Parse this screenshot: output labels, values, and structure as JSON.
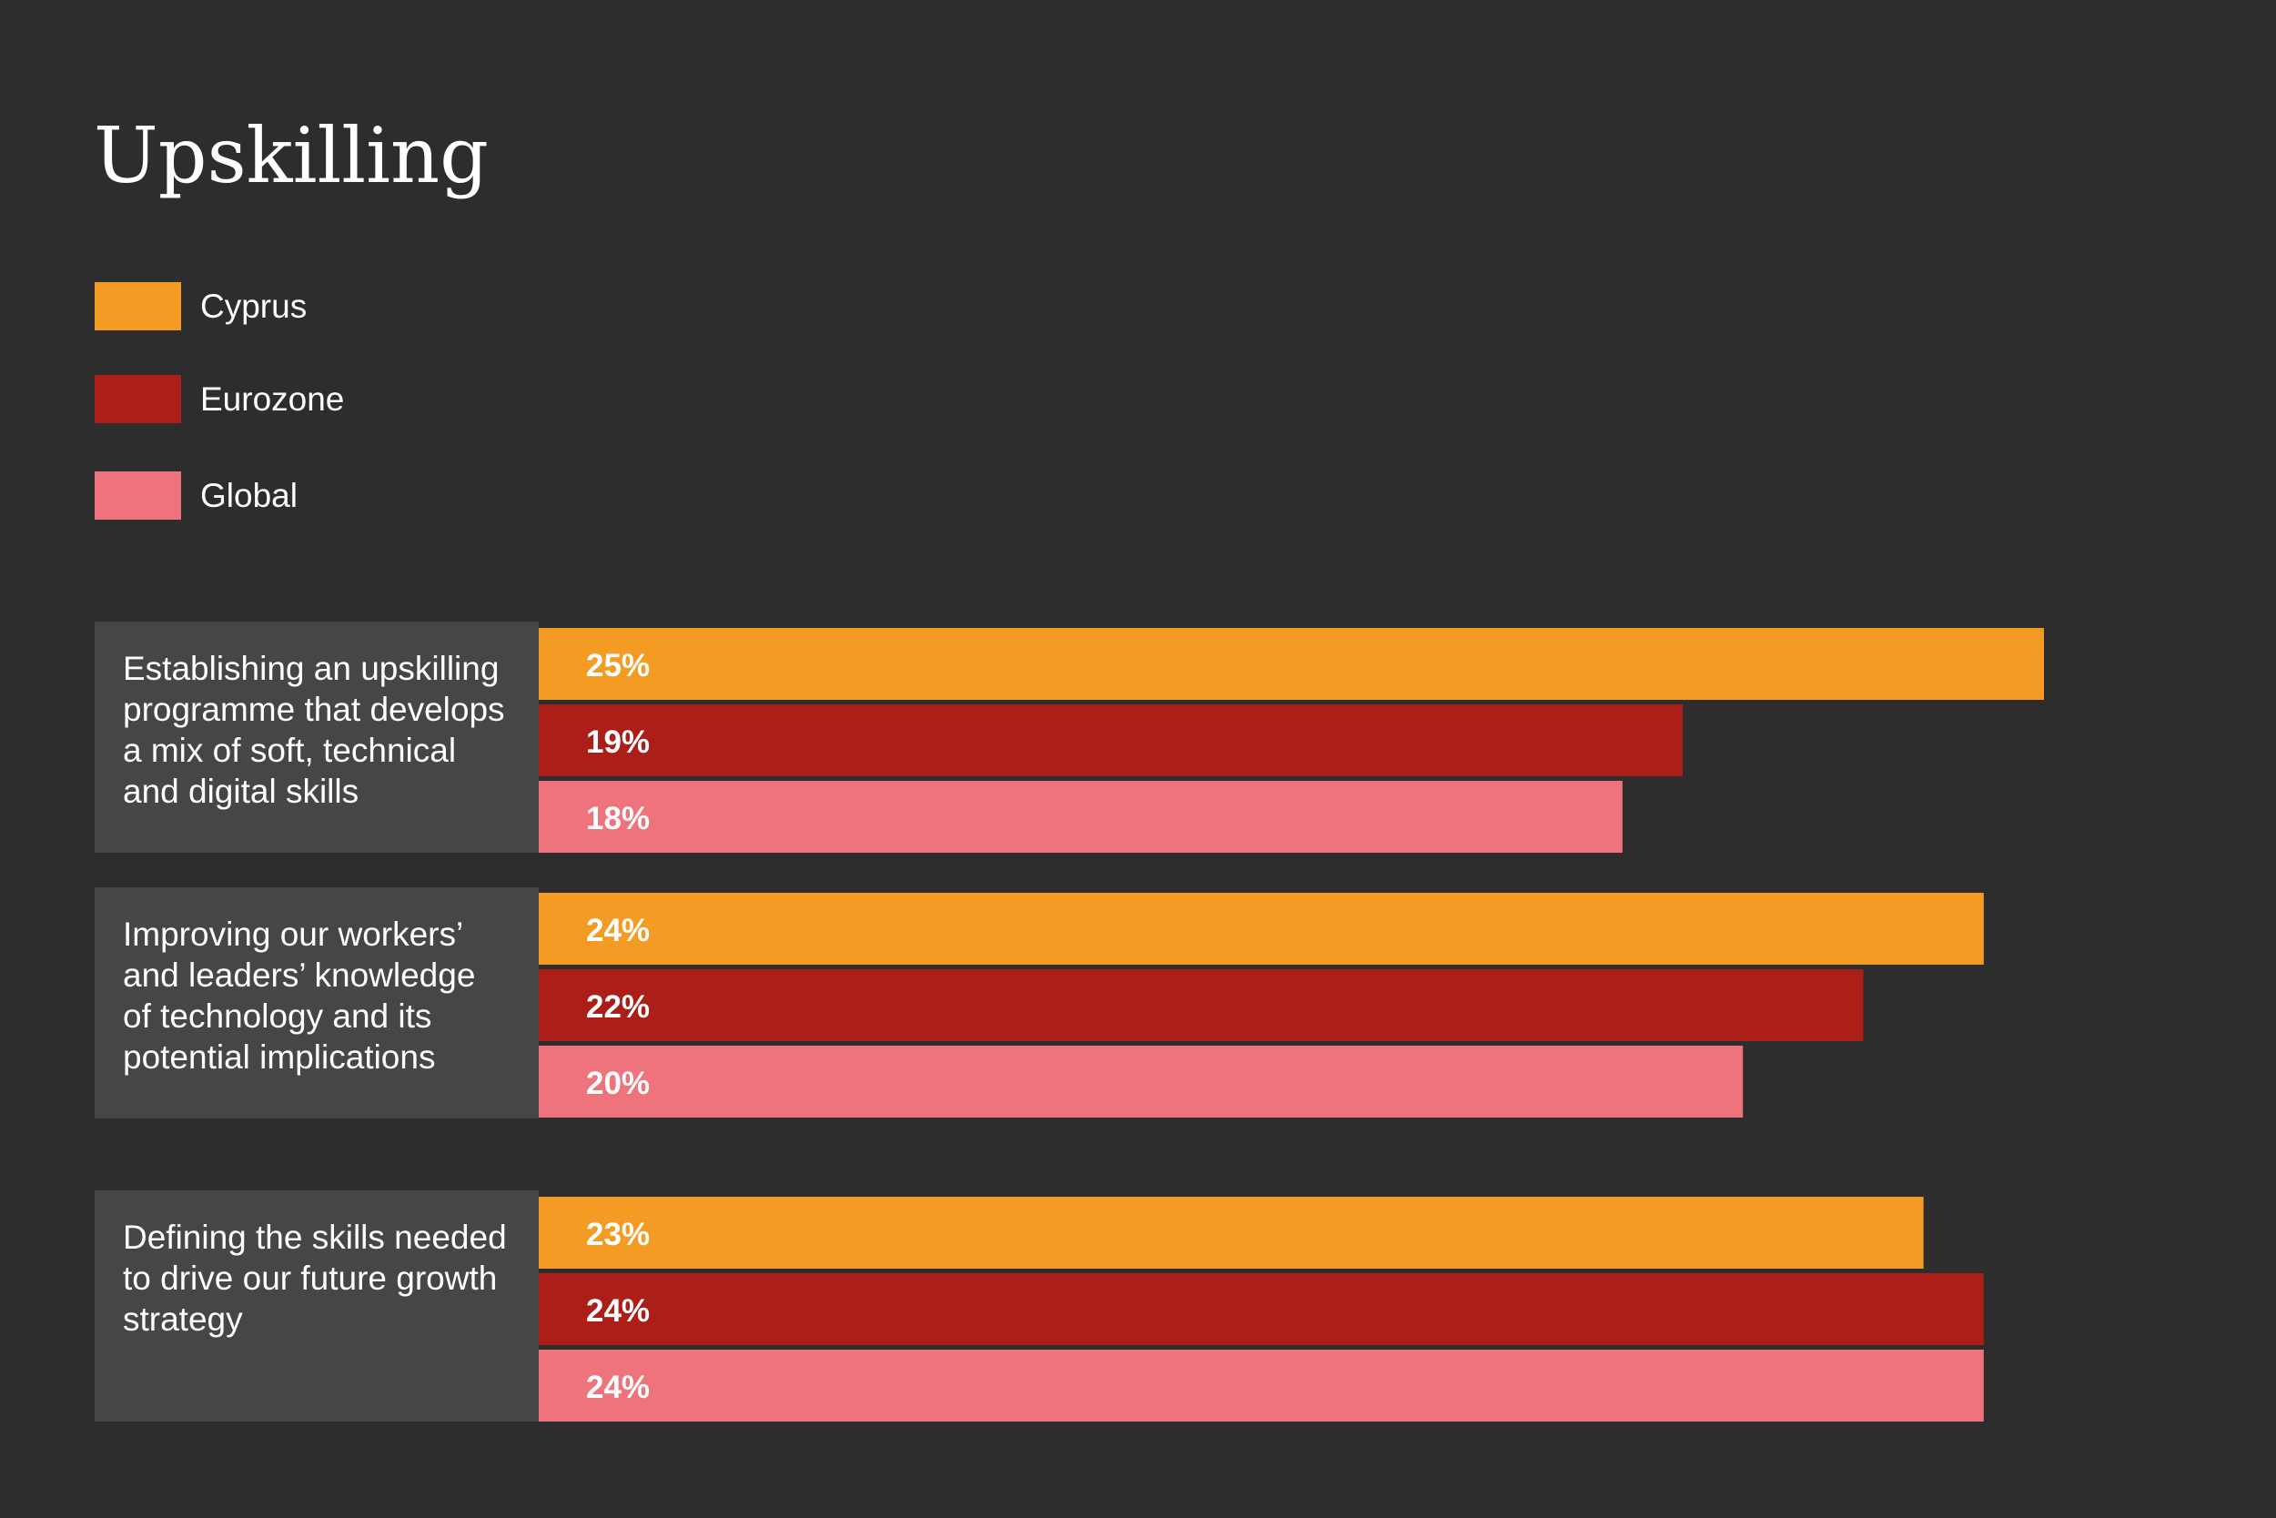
{
  "chart_data": {
    "type": "bar",
    "orientation": "horizontal",
    "title": "Upskilling",
    "categories": [
      [
        "Establishing an upskilling",
        "programme that develops",
        "a mix of soft, technical",
        "and digital skills"
      ],
      [
        "Improving our workers’",
        "and leaders’ knowledge",
        "of technology and its",
        "potential implications"
      ],
      [
        "Defining the skills needed",
        "to drive our future growth",
        "strategy"
      ]
    ],
    "series": [
      {
        "name": "Cyprus",
        "color": "#f49b24",
        "values": [
          25,
          24,
          23
        ],
        "labels": [
          "25%",
          "24%",
          "23%"
        ]
      },
      {
        "name": "Eurozone",
        "color": "#ab1f18",
        "values": [
          19,
          22,
          24
        ],
        "labels": [
          "19%",
          "22%",
          "24%"
        ]
      },
      {
        "name": "Global",
        "color": "#ef737d",
        "values": [
          18,
          20,
          24
        ],
        "labels": [
          "18%",
          "20%",
          "24%"
        ]
      }
    ],
    "xlim": [
      0,
      25
    ],
    "grid": false,
    "legend_position": "top-left",
    "category_box_color": "#464646",
    "background": "#2d2d2d"
  }
}
